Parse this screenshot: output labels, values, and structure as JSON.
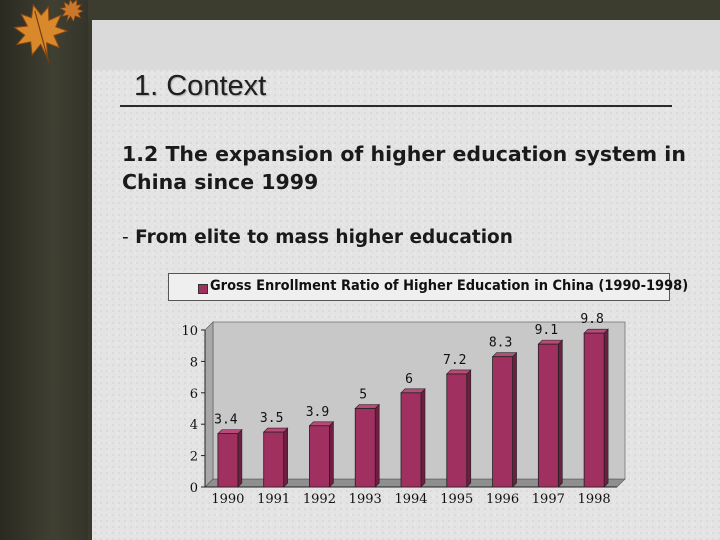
{
  "slide": {
    "title": "1. Context",
    "heading": "1.2 The expansion of higher education system in China since 1999",
    "bullet_dash": "-",
    "bullet_text": "From elite to mass higher education"
  },
  "colors": {
    "bar": "#a0305f",
    "bar_dark": "#6e1e40",
    "bar_top": "#b84a78",
    "plot_bg": "#c8c8c8"
  },
  "chart_data": {
    "type": "bar",
    "title": "",
    "legend": [
      "Gross Enrollment Ratio of Higher Education in China (1990-1998)"
    ],
    "legend_position": "top",
    "categories": [
      "1990",
      "1991",
      "1992",
      "1993",
      "1994",
      "1995",
      "1996",
      "1997",
      "1998"
    ],
    "series": [
      {
        "name": "Gross Enrollment Ratio of Higher Education in China (1990-1998)",
        "values": [
          3.4,
          3.5,
          3.9,
          5,
          6,
          7.2,
          8.3,
          9.1,
          9.8
        ],
        "labels": [
          "3.4",
          "3.5",
          "3.9",
          "5",
          "6",
          "7.2",
          "8.3",
          "9.1",
          "9.8"
        ]
      }
    ],
    "y_ticks": [
      "0",
      "2",
      "4",
      "6",
      "8",
      "10"
    ],
    "ylim": [
      0,
      10
    ],
    "xlabel": "",
    "ylabel": "",
    "grid": false
  }
}
